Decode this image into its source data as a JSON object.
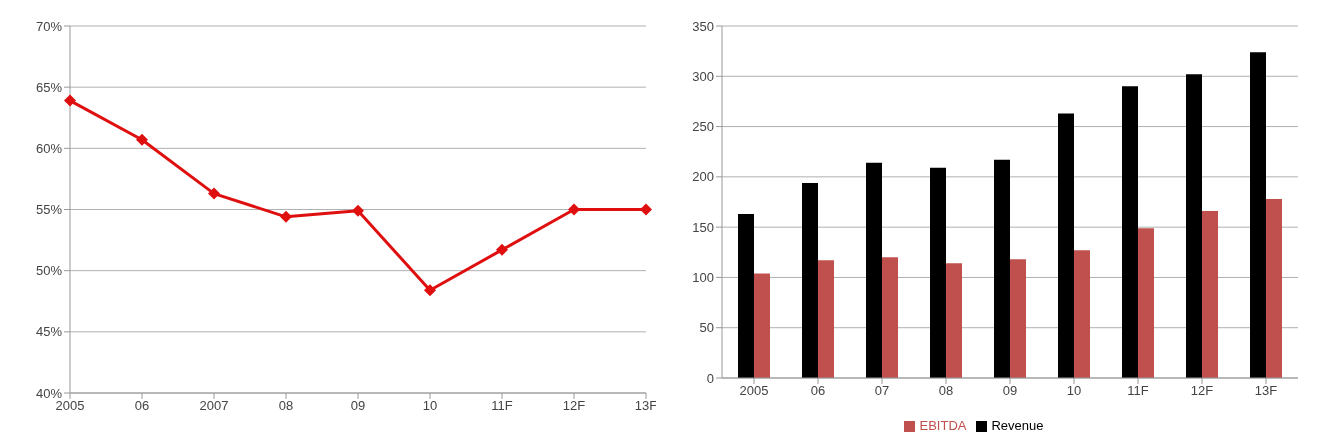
{
  "chart_data": [
    {
      "type": "line",
      "categories": [
        "2005",
        "06",
        "2007",
        "08",
        "09",
        "10",
        "11F",
        "12F",
        "13F"
      ],
      "series": [
        {
          "color": "#e00f0f",
          "values": [
            63.9,
            60.7,
            56.3,
            54.4,
            54.9,
            48.4,
            51.7,
            55.0,
            55.0
          ]
        }
      ],
      "ylim": [
        40,
        70
      ],
      "yticks": [
        {
          "value": 40,
          "label": "40%"
        },
        {
          "value": 45,
          "label": "45%"
        },
        {
          "value": 50,
          "label": "50%"
        },
        {
          "value": 55,
          "label": "55%"
        },
        {
          "value": 60,
          "label": "60%"
        },
        {
          "value": 65,
          "label": "65%"
        },
        {
          "value": 70,
          "label": "70%"
        }
      ],
      "grid": "y",
      "marker": "diamond",
      "line_style": "solid",
      "legend": false
    },
    {
      "type": "bar",
      "categories": [
        "2005",
        "06",
        "07",
        "08",
        "09",
        "10",
        "11F",
        "12F",
        "13F"
      ],
      "series": [
        {
          "name": "Revenue",
          "color": "#000000",
          "values": [
            163,
            194,
            214,
            209,
            217,
            263,
            290,
            302,
            324
          ]
        },
        {
          "name": "EBITDA",
          "color": "#c0504d",
          "values": [
            104,
            117,
            120,
            114,
            118,
            127,
            149,
            166,
            178
          ]
        }
      ],
      "ylim": [
        0,
        350
      ],
      "yticks": [
        0,
        50,
        100,
        150,
        200,
        250,
        300,
        350
      ],
      "grid": "y",
      "legend": "bottom"
    }
  ]
}
